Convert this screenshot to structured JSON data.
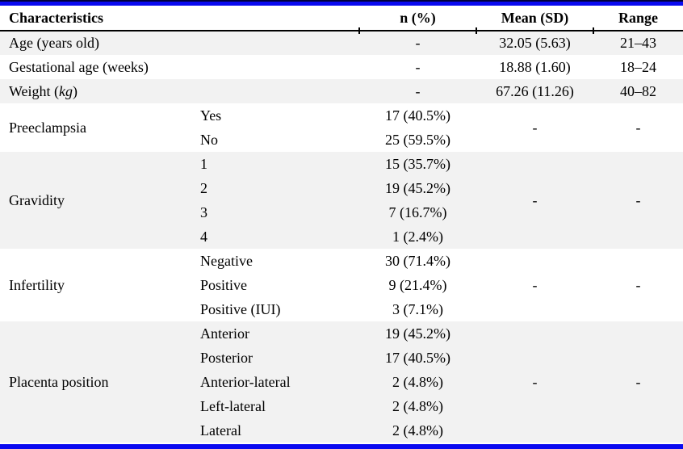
{
  "header": {
    "characteristics": "Characteristics",
    "n": "n (%)",
    "mean": "Mean (SD)",
    "range": "Range"
  },
  "rows": {
    "age": {
      "label": "Age (years old)",
      "n": "-",
      "mean": "32.05 (5.63)",
      "range": "21–43"
    },
    "gestational": {
      "label": "Gestational age (weeks)",
      "n": "-",
      "mean": "18.88 (1.60)",
      "range": "18–24"
    },
    "weight": {
      "label_prefix": "Weight (",
      "label_italic": "kg",
      "label_suffix": ")",
      "n": "-",
      "mean": "67.26 (11.26)",
      "range": "40–82"
    },
    "preeclampsia": {
      "label": "Preeclampsia",
      "mean": "-",
      "range": "-",
      "items": [
        {
          "sub": "Yes",
          "n": "17 (40.5%)"
        },
        {
          "sub": "No",
          "n": "25 (59.5%)"
        }
      ]
    },
    "gravidity": {
      "label": "Gravidity",
      "mean": "-",
      "range": "-",
      "items": [
        {
          "sub": "1",
          "n": "15 (35.7%)"
        },
        {
          "sub": "2",
          "n": "19 (45.2%)"
        },
        {
          "sub": "3",
          "n": "7 (16.7%)"
        },
        {
          "sub": "4",
          "n": "1 (2.4%)"
        }
      ]
    },
    "infertility": {
      "label": "Infertility",
      "mean": "-",
      "range": "-",
      "items": [
        {
          "sub": "Negative",
          "n": "30 (71.4%)"
        },
        {
          "sub": "Positive",
          "n": "9 (21.4%)"
        },
        {
          "sub": "Positive (IUI)",
          "n": "3 (7.1%)"
        }
      ]
    },
    "placenta": {
      "label": "Placenta position",
      "mean": "-",
      "range": "-",
      "items": [
        {
          "sub": "Anterior",
          "n": "19 (45.2%)"
        },
        {
          "sub": "Posterior",
          "n": "17 (40.5%)"
        },
        {
          "sub": "Anterior-lateral",
          "n": "2 (4.8%)"
        },
        {
          "sub": "Left-lateral",
          "n": "2 (4.8%)"
        },
        {
          "sub": "Lateral",
          "n": "2 (4.8%)"
        }
      ]
    }
  },
  "colors": {
    "accent_blue": "#0a0af0",
    "rule_dark": "#00003d",
    "shaded_row": "#f2f2f2",
    "header_rule": "#000000"
  }
}
